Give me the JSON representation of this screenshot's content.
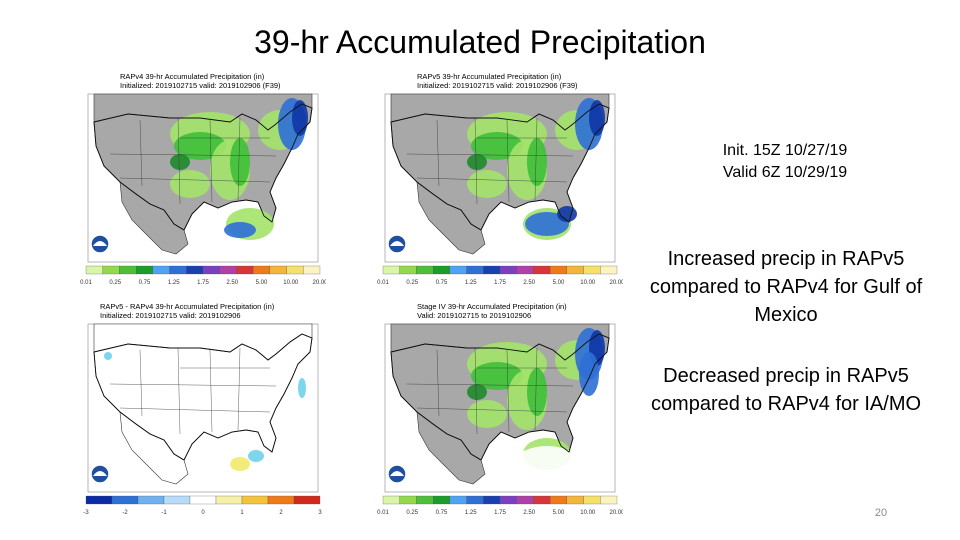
{
  "slide": {
    "title": "39-hr Accumulated Precipitation",
    "page_number": "20"
  },
  "text": {
    "init_line": "Init. 15Z 10/27/19",
    "valid_line": "Valid 6Z 10/29/19",
    "increased_note": "Increased precip in RAPv5 compared to RAPv4 for Gulf of Mexico",
    "decreased_note": "Decreased precip in RAPv5 compared to RAPv4 for IA/MO"
  },
  "panels": [
    {
      "header1": "RAPv4 39-hr Accumulated Precipitation (in)",
      "header2": "Initialized: 2019102715 valid: 2019102906 (F39)",
      "scale_labels": [
        "0.01",
        "0.25",
        "0.75",
        "1.25",
        "1.75",
        "2.50",
        "5.00",
        "10.00",
        "20.00"
      ],
      "unit": "in"
    },
    {
      "header1": "RAPv5 39-hr Accumulated Precipitation (in)",
      "header2": "Initialized: 2019102715 valid: 2019102906 (F39)",
      "scale_labels": [
        "0.01",
        "0.25",
        "0.75",
        "1.25",
        "1.75",
        "2.50",
        "5.00",
        "10.00",
        "20.00"
      ],
      "unit": "in"
    },
    {
      "header1": "RAPv5 - RAPv4 39-hr Accumulated Precipitation (in)",
      "header2": "Initialized: 2019102715 valid: 2019102906",
      "scale_labels": [
        "-3",
        "-2",
        "-1",
        "0",
        "1",
        "2",
        "3"
      ],
      "unit": "in"
    },
    {
      "header1": "Stage IV 39-hr Accumulated Precipitation (in)",
      "header2": "Valid: 2019102715 to 2019102906",
      "scale_labels": [
        "0.01",
        "0.25",
        "0.75",
        "1.25",
        "1.75",
        "2.50",
        "5.00",
        "10.00",
        "20.00"
      ],
      "unit": "in"
    }
  ],
  "colors": {
    "land": "#a8a8a8",
    "ocean": "#ffffff",
    "precip_light": "#a3e36a",
    "precip_med": "#3fbf3a",
    "precip_heavy": "#1d8a2a",
    "precip_blue": "#2f6fd6",
    "precip_dark_blue": "#1036a6",
    "diff_pos": "#6fd0ee",
    "diff_neg": "#f3ea6a",
    "standard_scale": [
      "#d8f5a8",
      "#93d94e",
      "#4fbf3a",
      "#1a9d2a",
      "#4fa3f2",
      "#2f6fd6",
      "#1a3fb0",
      "#7b3fbf",
      "#b03fa8",
      "#d6363a",
      "#f07a1a",
      "#f3b53a",
      "#f5e06a",
      "#fbf3c0"
    ],
    "diff_scale": [
      "#0b2aa6",
      "#2f6fd6",
      "#6fb0f0",
      "#b6dcf7",
      "#ffffff",
      "#f7f0a8",
      "#f3c33a",
      "#f07a1a",
      "#d22a1a"
    ],
    "noaa_blue": "#1f4fa0"
  }
}
